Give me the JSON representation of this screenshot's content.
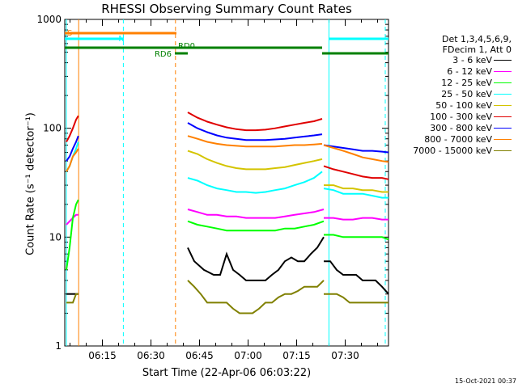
{
  "chart_data": {
    "type": "line",
    "title": "RHESSI Observing Summary Count Rates",
    "xlabel": "Start Time (22-Apr-06 06:03:22)",
    "ylabel": "Count Rate (s⁻¹ detector⁻¹)",
    "ylim": [
      1,
      1000
    ],
    "yscale": "log",
    "xlim_minutes": [
      0,
      100
    ],
    "x_tick_labels": [
      "06:15",
      "06:30",
      "06:45",
      "07:00",
      "07:15",
      "07:30"
    ],
    "x_tick_minutes": [
      11.63,
      26.63,
      41.63,
      56.63,
      71.63,
      86.63
    ],
    "y_tick_labels": [
      "1",
      "10",
      "100",
      "1000"
    ],
    "legend": {
      "header": [
        "Det 1,3,4,5,6,9,",
        "FDecim 1, Att 0"
      ],
      "entries": [
        {
          "label": "3 - 6 keV",
          "color": "#000000"
        },
        {
          "label": "6 - 12 keV",
          "color": "#ff00ff"
        },
        {
          "label": "12 - 25 keV",
          "color": "#00ff00"
        },
        {
          "label": "25 - 50 keV",
          "color": "#00ffff"
        },
        {
          "label": "50 - 100 keV",
          "color": "#d4c400"
        },
        {
          "label": "100 - 300 keV",
          "color": "#e00000"
        },
        {
          "label": "300 - 800 keV",
          "color": "#0000ff"
        },
        {
          "label": "800 - 7000 keV",
          "color": "#ff8000"
        },
        {
          "label": "7000 - 15000 keV",
          "color": "#808000"
        }
      ]
    },
    "flags": [
      {
        "label": "S",
        "color": "#ff8000",
        "x0": 0,
        "x1": 34.5
      },
      {
        "label": "N",
        "color": "#00ffff",
        "x0": 0,
        "x1": 18.1
      },
      {
        "label": "",
        "color": "#00ffff",
        "x0": 81.6,
        "x1": 100
      },
      {
        "label": "RD0",
        "color": "#008000",
        "x0": 0,
        "x1": 79.5
      },
      {
        "label": "",
        "color": "#008000",
        "x0": 79.5,
        "x1": 100
      },
      {
        "label": "RD6",
        "color": "#008000",
        "x0": 34.0,
        "x1": 38.0
      }
    ],
    "vertical_lines": [
      {
        "x": 0.5,
        "color": "#00ffff",
        "style": "solid"
      },
      {
        "x": 4.3,
        "color": "#ff8000",
        "style": "solid"
      },
      {
        "x": 18.1,
        "color": "#00ffff",
        "style": "dashed"
      },
      {
        "x": 34.2,
        "color": "#ff8000",
        "style": "dashed"
      },
      {
        "x": 81.6,
        "color": "#00ffff",
        "style": "solid"
      },
      {
        "x": 99.0,
        "color": "#00ffff",
        "style": "dashed"
      }
    ],
    "series": [
      {
        "name": "3 - 6 keV",
        "color": "#000000",
        "segments": [
          {
            "x": [
              0.5,
              1.5,
              2.5,
              3.5,
              4.2
            ],
            "y": [
              3,
              3,
              3,
              3,
              3
            ]
          },
          {
            "x": [
              38.0,
              40,
              43,
              46,
              48,
              50,
              52,
              54,
              56,
              58,
              60,
              62,
              64,
              66,
              68,
              70,
              72,
              74,
              76,
              78,
              80
            ],
            "y": [
              8,
              6,
              5,
              4.5,
              4.5,
              7,
              5,
              4.5,
              4,
              4,
              4,
              4,
              4.5,
              5,
              6,
              6.5,
              6,
              6,
              7,
              8,
              10
            ]
          },
          {
            "x": [
              80,
              82,
              84,
              86,
              88,
              90,
              92,
              94,
              96,
              98,
              100
            ],
            "y": [
              6,
              6,
              5,
              4.5,
              4.5,
              4.5,
              4,
              4,
              4,
              3.5,
              3
            ]
          }
        ]
      },
      {
        "name": "6 - 12 keV",
        "color": "#ff00ff",
        "segments": [
          {
            "x": [
              0.5,
              1.5,
              2.5,
              3.5,
              4.2
            ],
            "y": [
              13,
              14,
              15,
              16,
              16
            ]
          },
          {
            "x": [
              38.0,
              41,
              44,
              47,
              50,
              53,
              56,
              59,
              62,
              65,
              68,
              71,
              74,
              77,
              80
            ],
            "y": [
              18,
              17,
              16,
              16,
              15.5,
              15.5,
              15,
              15,
              15,
              15,
              15.5,
              16,
              16.5,
              17,
              18
            ]
          },
          {
            "x": [
              80,
              83,
              86,
              89,
              92,
              95,
              98,
              100
            ],
            "y": [
              15,
              15,
              14.5,
              14.5,
              15,
              15,
              14.5,
              14.5
            ]
          }
        ]
      },
      {
        "name": "12 - 25 keV",
        "color": "#00ff00",
        "segments": [
          {
            "x": [
              0.5,
              1.5,
              2.5,
              3.5,
              4.2
            ],
            "y": [
              5,
              8,
              15,
              20,
              22
            ]
          },
          {
            "x": [
              38.0,
              41,
              44,
              47,
              50,
              53,
              56,
              59,
              62,
              65,
              68,
              71,
              74,
              77,
              80
            ],
            "y": [
              14,
              13,
              12.5,
              12,
              11.5,
              11.5,
              11.5,
              11.5,
              11.5,
              11.5,
              12,
              12,
              12.5,
              13,
              14
            ]
          },
          {
            "x": [
              80,
              83,
              86,
              89,
              92,
              95,
              98,
              100
            ],
            "y": [
              10.5,
              10.5,
              10,
              10,
              10,
              10,
              10,
              9.5
            ]
          }
        ]
      },
      {
        "name": "25 - 50 keV",
        "color": "#00ffff",
        "segments": [
          {
            "x": [
              0.5,
              1.5,
              2.5,
              3.5,
              4.2
            ],
            "y": [
              40,
              45,
              55,
              65,
              75
            ]
          },
          {
            "x": [
              38.0,
              41,
              44,
              47,
              50,
              53,
              56,
              59,
              62,
              65,
              68,
              71,
              74,
              77,
              79.5
            ],
            "y": [
              35,
              33,
              30,
              28,
              27,
              26,
              26,
              25.5,
              26,
              27,
              28,
              30,
              32,
              35,
              40
            ]
          },
          {
            "x": [
              80,
              83,
              86,
              89,
              92,
              95,
              98,
              100
            ],
            "y": [
              28,
              27,
              25,
              25,
              25,
              24,
              23,
              23
            ]
          }
        ]
      },
      {
        "name": "50 - 100 keV",
        "color": "#d4c400",
        "segments": [
          {
            "x": [
              38.0,
              41,
              44,
              47,
              50,
              53,
              56,
              59,
              62,
              65,
              68,
              71,
              74,
              77,
              79.5
            ],
            "y": [
              62,
              58,
              52,
              48,
              45,
              43,
              42,
              42,
              42,
              43,
              44,
              46,
              48,
              50,
              52
            ]
          },
          {
            "x": [
              80,
              83,
              86,
              89,
              92,
              95,
              98,
              100
            ],
            "y": [
              30,
              30,
              28,
              28,
              27,
              27,
              26,
              26
            ]
          }
        ]
      },
      {
        "name": "100 - 300 keV",
        "color": "#e00000",
        "segments": [
          {
            "x": [
              0.5,
              1.5,
              2.5,
              3.5,
              4.2
            ],
            "y": [
              75,
              85,
              100,
              120,
              130
            ]
          },
          {
            "x": [
              38.0,
              41,
              44,
              47,
              50,
              53,
              56,
              59,
              62,
              65,
              68,
              71,
              74,
              77,
              79.5
            ],
            "y": [
              140,
              125,
              115,
              108,
              102,
              98,
              96,
              96,
              97,
              100,
              104,
              108,
              112,
              116,
              122
            ]
          },
          {
            "x": [
              80,
              83,
              86,
              89,
              92,
              95,
              98,
              100
            ],
            "y": [
              45,
              42,
              40,
              38,
              36,
              35,
              35,
              34
            ]
          },
          {
            "x": [
              0,
              0,
              0
            ],
            "y": [
              0,
              0,
              0
            ]
          }
        ]
      },
      {
        "name": "300 - 800 keV",
        "color": "#0000ff",
        "segments": [
          {
            "x": [
              0.5,
              1.5,
              2.5,
              3.5,
              4.2
            ],
            "y": [
              50,
              55,
              65,
              75,
              85
            ]
          },
          {
            "x": [
              38.0,
              41,
              44,
              47,
              50,
              53,
              56,
              59,
              62,
              65,
              68,
              71,
              74,
              77,
              79.5
            ],
            "y": [
              112,
              100,
              92,
              86,
              82,
              80,
              78,
              78,
              78,
              79,
              80,
              82,
              84,
              86,
              88
            ]
          },
          {
            "x": [
              80,
              83,
              86,
              89,
              92,
              95,
              98,
              100
            ],
            "y": [
              70,
              68,
              66,
              64,
              62,
              62,
              61,
              60
            ]
          }
        ]
      },
      {
        "name": "800 - 7000 keV",
        "color": "#ff8000",
        "segments": [
          {
            "x": [
              0.5,
              1.5,
              2.5,
              3.5,
              4.2
            ],
            "y": [
              40,
              45,
              55,
              60,
              65
            ]
          },
          {
            "x": [
              38.0,
              41,
              44,
              47,
              50,
              53,
              56,
              59,
              62,
              65,
              68,
              71,
              74,
              77,
              79.5
            ],
            "y": [
              85,
              80,
              75,
              72,
              70,
              69,
              68,
              68,
              68,
              68,
              69,
              70,
              70,
              71,
              72
            ]
          },
          {
            "x": [
              80,
              83,
              86,
              89,
              92,
              95,
              98,
              100
            ],
            "y": [
              70,
              66,
              62,
              58,
              54,
              52,
              50,
              49
            ]
          }
        ]
      },
      {
        "name": "7000 - 15000 keV",
        "color": "#808000",
        "segments": [
          {
            "x": [
              0.5,
              1.5,
              2.5,
              3.5,
              4.2
            ],
            "y": [
              2.5,
              2.5,
              2.5,
              3,
              3
            ]
          },
          {
            "x": [
              38.0,
              40,
              42,
              44,
              46,
              48,
              50,
              52,
              54,
              56,
              58,
              60,
              62,
              64,
              66,
              68,
              70,
              72,
              74,
              76,
              78,
              80
            ],
            "y": [
              4,
              3.5,
              3,
              2.5,
              2.5,
              2.5,
              2.5,
              2.2,
              2,
              2,
              2,
              2.2,
              2.5,
              2.5,
              2.8,
              3,
              3,
              3.2,
              3.5,
              3.5,
              3.5,
              4
            ]
          },
          {
            "x": [
              80,
              82,
              84,
              86,
              88,
              90,
              92,
              94,
              96,
              98,
              100
            ],
            "y": [
              3,
              3,
              3,
              2.8,
              2.5,
              2.5,
              2.5,
              2.5,
              2.5,
              2.5,
              2.5
            ]
          }
        ]
      }
    ]
  },
  "footer": {
    "timestamp": "15-Oct-2021 00:37"
  }
}
